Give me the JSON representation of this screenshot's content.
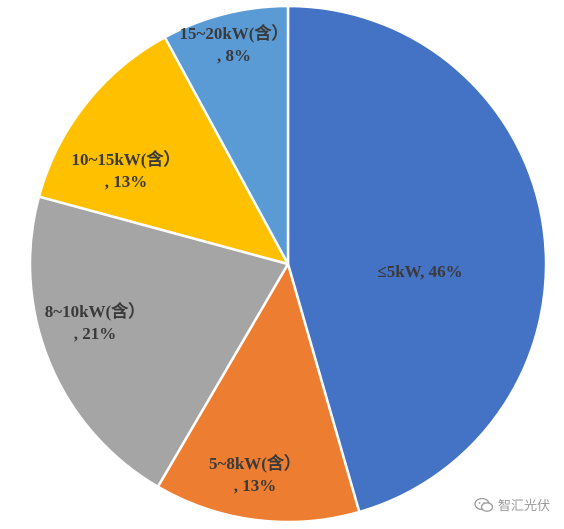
{
  "chart_data": {
    "type": "pie",
    "title": "",
    "slices": [
      {
        "label": "≤5kW, 46%",
        "value": 46,
        "color": "#4472C4",
        "label_lines": [
          "≤5kW, 46%"
        ],
        "label_color": "#3a3a3a"
      },
      {
        "label": "5~8kW(含）, 13%",
        "value": 13,
        "color": "#ED7D31",
        "label_lines": [
          "5~8kW(含）",
          ", 13%"
        ],
        "label_color": "#3a3a3a"
      },
      {
        "label": "8~10kW(含）, 21%",
        "value": 21,
        "color": "#A5A5A5",
        "label_lines": [
          "8~10kW(含）",
          ", 21%"
        ],
        "label_color": "#3a3a3a"
      },
      {
        "label": "10~15kW(含）, 13%",
        "value": 13,
        "color": "#FFC000",
        "label_lines": [
          "10~15kW(含）",
          ", 13%"
        ],
        "label_color": "#3a3a3a"
      },
      {
        "label": "15~20kW(含）, 8%",
        "value": 8,
        "color": "#5B9BD5",
        "label_lines": [
          "15~20kW(含）",
          ", 8%"
        ],
        "label_color": "#3a3a3a"
      }
    ],
    "start": "12 o'clock",
    "direction": "clockwise",
    "legend": "none",
    "slice_border_color": "#ffffff"
  },
  "watermark": {
    "text": "智汇光伏",
    "icon": "wechat-icon"
  }
}
